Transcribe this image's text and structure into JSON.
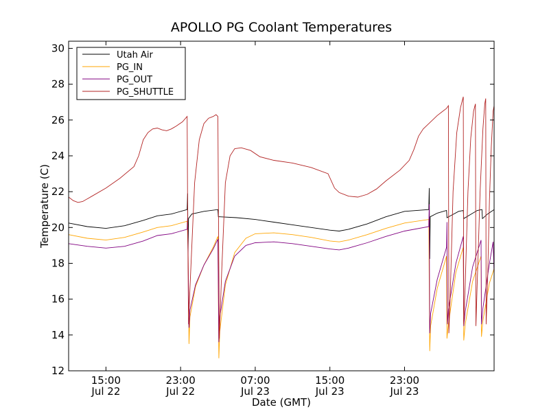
{
  "chart_data": {
    "type": "line",
    "title": "APOLLO PG Coolant Temperatures",
    "xlabel": "Date (GMT)",
    "ylabel": "Temperature (C)",
    "x_unit": "hours since Jul 22 11:00 GMT",
    "xlim": [
      0,
      45.6
    ],
    "ylim": [
      12,
      30.4
    ],
    "yticks": [
      12,
      14,
      16,
      18,
      20,
      22,
      24,
      26,
      28,
      30
    ],
    "xticks": [
      {
        "x": 4,
        "time": "15:00",
        "date": "Jul 22"
      },
      {
        "x": 12,
        "time": "23:00",
        "date": "Jul 22"
      },
      {
        "x": 20,
        "time": "07:00",
        "date": "Jul 23"
      },
      {
        "x": 28,
        "time": "15:00",
        "date": "Jul 23"
      },
      {
        "x": 36,
        "time": "23:00",
        "date": "Jul 23"
      }
    ],
    "legend_position": "top-left",
    "series": [
      {
        "name": "Utah Air",
        "color": "#000000",
        "points": [
          [
            0,
            20.25
          ],
          [
            2,
            20.05
          ],
          [
            4,
            19.95
          ],
          [
            6,
            20.1
          ],
          [
            8,
            20.4
          ],
          [
            9.5,
            20.65
          ],
          [
            11,
            20.75
          ],
          [
            12.7,
            21.0
          ],
          [
            12.75,
            21.9
          ],
          [
            12.8,
            18.4
          ],
          [
            12.85,
            20.5
          ],
          [
            13.2,
            20.75
          ],
          [
            14.5,
            20.9
          ],
          [
            16,
            21.0
          ],
          [
            16.05,
            20.6
          ],
          [
            16.2,
            20.6
          ],
          [
            18,
            20.55
          ],
          [
            20,
            20.45
          ],
          [
            22,
            20.3
          ],
          [
            24,
            20.15
          ],
          [
            26,
            20.0
          ],
          [
            28,
            19.85
          ],
          [
            29,
            19.8
          ],
          [
            30,
            19.9
          ],
          [
            32,
            20.2
          ],
          [
            34,
            20.6
          ],
          [
            36,
            20.9
          ],
          [
            38.6,
            21.0
          ],
          [
            38.65,
            22.2
          ],
          [
            38.7,
            18.25
          ],
          [
            38.75,
            20.6
          ],
          [
            39.5,
            20.8
          ],
          [
            40.5,
            20.95
          ],
          [
            40.55,
            20.55
          ],
          [
            41.1,
            20.7
          ],
          [
            41.8,
            20.9
          ],
          [
            42.3,
            20.95
          ],
          [
            42.35,
            20.5
          ],
          [
            43,
            20.7
          ],
          [
            43.8,
            20.95
          ],
          [
            44.3,
            21.0
          ],
          [
            44.35,
            20.5
          ],
          [
            44.9,
            20.75
          ],
          [
            45.6,
            21.0
          ]
        ]
      },
      {
        "name": "PG_IN",
        "color": "#ffa500",
        "points": [
          [
            0,
            19.6
          ],
          [
            2,
            19.4
          ],
          [
            4,
            19.3
          ],
          [
            6,
            19.45
          ],
          [
            8,
            19.75
          ],
          [
            9.5,
            20.0
          ],
          [
            11,
            20.1
          ],
          [
            12.7,
            20.35
          ],
          [
            12.8,
            19.0
          ],
          [
            12.9,
            13.5
          ],
          [
            13,
            15.0
          ],
          [
            13.6,
            16.7
          ],
          [
            14.5,
            17.9
          ],
          [
            15.5,
            18.9
          ],
          [
            16,
            19.5
          ],
          [
            16.1,
            12.7
          ],
          [
            16.2,
            14.2
          ],
          [
            16.8,
            16.8
          ],
          [
            17.8,
            18.6
          ],
          [
            19,
            19.4
          ],
          [
            20,
            19.65
          ],
          [
            22,
            19.7
          ],
          [
            24,
            19.6
          ],
          [
            26,
            19.45
          ],
          [
            28,
            19.25
          ],
          [
            29,
            19.2
          ],
          [
            30,
            19.3
          ],
          [
            32,
            19.6
          ],
          [
            34,
            19.95
          ],
          [
            36,
            20.25
          ],
          [
            38.6,
            20.45
          ],
          [
            38.7,
            13.1
          ],
          [
            38.8,
            14.5
          ],
          [
            39.5,
            16.6
          ],
          [
            40.5,
            18.4
          ],
          [
            40.55,
            13.8
          ],
          [
            40.7,
            14.6
          ],
          [
            41.5,
            17.5
          ],
          [
            42.3,
            18.9
          ],
          [
            42.35,
            13.7
          ],
          [
            42.5,
            14.6
          ],
          [
            43.3,
            17.0
          ],
          [
            44.2,
            18.4
          ],
          [
            44.25,
            13.9
          ],
          [
            44.4,
            14.8
          ],
          [
            45.1,
            16.9
          ],
          [
            45.6,
            17.7
          ]
        ]
      },
      {
        "name": "PG_OUT",
        "color": "#800080",
        "points": [
          [
            0,
            19.1
          ],
          [
            2,
            18.95
          ],
          [
            4,
            18.85
          ],
          [
            6,
            18.95
          ],
          [
            8,
            19.25
          ],
          [
            9.5,
            19.55
          ],
          [
            11,
            19.65
          ],
          [
            12.7,
            19.9
          ],
          [
            12.75,
            20.6
          ],
          [
            12.8,
            18.6
          ],
          [
            12.9,
            14.4
          ],
          [
            13,
            15.4
          ],
          [
            13.6,
            16.8
          ],
          [
            14.5,
            17.9
          ],
          [
            15.5,
            18.8
          ],
          [
            16,
            19.35
          ],
          [
            16.1,
            13.6
          ],
          [
            16.2,
            15.0
          ],
          [
            16.8,
            17.0
          ],
          [
            17.8,
            18.4
          ],
          [
            19,
            19.0
          ],
          [
            20,
            19.15
          ],
          [
            22,
            19.2
          ],
          [
            24,
            19.1
          ],
          [
            26,
            18.95
          ],
          [
            28,
            18.8
          ],
          [
            29,
            18.75
          ],
          [
            30,
            18.85
          ],
          [
            32,
            19.15
          ],
          [
            34,
            19.5
          ],
          [
            36,
            19.8
          ],
          [
            38.6,
            20.05
          ],
          [
            38.65,
            21.3
          ],
          [
            38.7,
            14.1
          ],
          [
            38.8,
            15.2
          ],
          [
            39.5,
            17.1
          ],
          [
            40.5,
            18.9
          ],
          [
            40.55,
            20.3
          ],
          [
            40.6,
            14.6
          ],
          [
            40.7,
            15.4
          ],
          [
            41.5,
            18.0
          ],
          [
            42.3,
            19.5
          ],
          [
            42.35,
            14.5
          ],
          [
            42.5,
            15.3
          ],
          [
            43.3,
            17.8
          ],
          [
            44.2,
            19.3
          ],
          [
            44.25,
            14.6
          ],
          [
            44.4,
            15.5
          ],
          [
            45.1,
            18.0
          ],
          [
            45.5,
            19.2
          ],
          [
            45.6,
            17.4
          ]
        ]
      },
      {
        "name": "PG_SHUTTLE",
        "color": "#b22222",
        "points": [
          [
            0,
            21.7
          ],
          [
            0.5,
            21.5
          ],
          [
            1,
            21.4
          ],
          [
            1.5,
            21.45
          ],
          [
            2.5,
            21.75
          ],
          [
            4,
            22.2
          ],
          [
            5.5,
            22.75
          ],
          [
            7,
            23.4
          ],
          [
            7.5,
            24.0
          ],
          [
            8,
            24.9
          ],
          [
            8.5,
            25.3
          ],
          [
            9,
            25.5
          ],
          [
            9.5,
            25.55
          ],
          [
            10,
            25.45
          ],
          [
            10.5,
            25.4
          ],
          [
            11,
            25.5
          ],
          [
            11.5,
            25.65
          ],
          [
            12.2,
            25.9
          ],
          [
            12.7,
            26.2
          ],
          [
            12.75,
            21.0
          ],
          [
            12.85,
            14.6
          ],
          [
            13,
            16.6
          ],
          [
            13.5,
            22.5
          ],
          [
            14,
            24.9
          ],
          [
            14.5,
            25.8
          ],
          [
            15,
            26.1
          ],
          [
            15.5,
            26.2
          ],
          [
            15.8,
            26.3
          ],
          [
            16,
            26.2
          ],
          [
            16.05,
            21.7
          ],
          [
            16.15,
            13.8
          ],
          [
            16.4,
            17.5
          ],
          [
            16.8,
            22.5
          ],
          [
            17.3,
            24.0
          ],
          [
            17.8,
            24.4
          ],
          [
            18.5,
            24.45
          ],
          [
            19.5,
            24.3
          ],
          [
            20.5,
            23.95
          ],
          [
            22,
            23.75
          ],
          [
            24,
            23.6
          ],
          [
            26,
            23.35
          ],
          [
            27.8,
            23.0
          ],
          [
            28.5,
            22.2
          ],
          [
            29,
            21.95
          ],
          [
            30,
            21.75
          ],
          [
            31,
            21.7
          ],
          [
            32,
            21.85
          ],
          [
            33,
            22.15
          ],
          [
            34,
            22.6
          ],
          [
            35.5,
            23.2
          ],
          [
            36.5,
            23.75
          ],
          [
            37,
            24.35
          ],
          [
            37.5,
            25.1
          ],
          [
            38,
            25.5
          ],
          [
            38.5,
            25.75
          ],
          [
            39,
            26.0
          ],
          [
            39.5,
            26.25
          ],
          [
            40,
            26.45
          ],
          [
            40.5,
            26.65
          ],
          [
            40.7,
            26.8
          ],
          [
            40.75,
            14.1
          ],
          [
            40.9,
            16.2
          ],
          [
            41.2,
            22.0
          ],
          [
            41.6,
            25.3
          ],
          [
            42,
            26.7
          ],
          [
            42.3,
            27.3
          ],
          [
            42.35,
            14.6
          ],
          [
            42.5,
            16.8
          ],
          [
            42.8,
            22.0
          ],
          [
            43.1,
            25.0
          ],
          [
            43.4,
            26.5
          ],
          [
            43.6,
            26.9
          ],
          [
            43.65,
            14.5
          ],
          [
            43.8,
            17.0
          ],
          [
            44.1,
            22.0
          ],
          [
            44.4,
            25.5
          ],
          [
            44.6,
            26.9
          ],
          [
            44.7,
            27.2
          ],
          [
            44.75,
            14.6
          ],
          [
            44.9,
            17.0
          ],
          [
            45.1,
            21.5
          ],
          [
            45.3,
            24.5
          ],
          [
            45.5,
            26.5
          ],
          [
            45.6,
            26.8
          ]
        ]
      }
    ]
  }
}
